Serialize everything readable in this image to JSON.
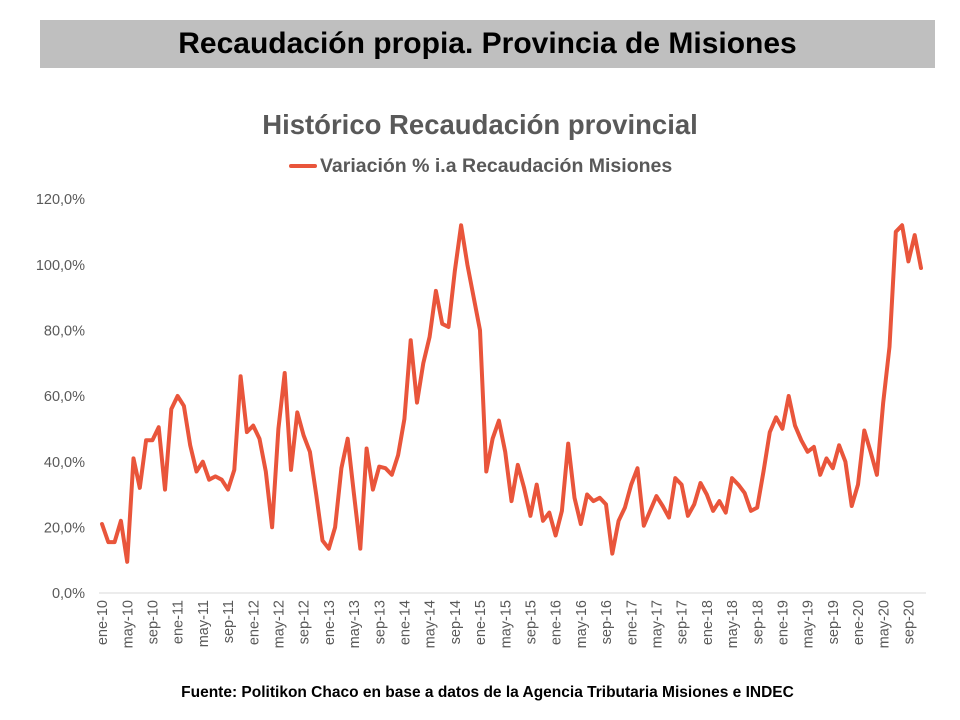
{
  "header": {
    "title": "Recaudación propia. Provincia de Misiones"
  },
  "chart_data": {
    "type": "line",
    "title": "Histórico Recaudación provincial",
    "xlabel": "",
    "ylabel": "",
    "ylim": [
      0,
      120
    ],
    "grid": false,
    "legend": "top",
    "y_ticks": [
      {
        "value": 0,
        "label": "0,0%"
      },
      {
        "value": 20,
        "label": "20,0%"
      },
      {
        "value": 40,
        "label": "40,0%"
      },
      {
        "value": 60,
        "label": "60,0%"
      },
      {
        "value": 80,
        "label": "80,0%"
      },
      {
        "value": 100,
        "label": "100,0%"
      },
      {
        "value": 120,
        "label": "120,0%"
      }
    ],
    "x_tick_labels": [
      "ene-10",
      "may-10",
      "sep-10",
      "ene-11",
      "may-11",
      "sep-11",
      "ene-12",
      "may-12",
      "sep-12",
      "ene-13",
      "may-13",
      "sep-13",
      "ene-14",
      "may-14",
      "sep-14",
      "ene-15",
      "may-15",
      "sep-15",
      "ene-16",
      "may-16",
      "sep-16",
      "ene-17",
      "may-17",
      "sep-17",
      "ene-18",
      "may-18",
      "sep-18",
      "ene-19",
      "may-19",
      "sep-19",
      "ene-20",
      "may-20",
      "sep-20"
    ],
    "series": [
      {
        "name": "Variación % i.a Recaudación Misiones",
        "color": "#e9553b",
        "values": [
          21,
          15.5,
          15.5,
          22,
          9.5,
          41,
          32,
          46.5,
          46.5,
          50.5,
          31.5,
          56,
          60,
          57,
          45,
          37,
          40,
          34.5,
          35.5,
          34.5,
          31.5,
          37.5,
          66,
          49,
          51,
          47,
          37,
          20,
          50,
          67,
          37.5,
          55,
          48,
          43,
          30,
          16,
          13.5,
          20,
          38,
          47,
          30,
          13.5,
          44,
          31.5,
          38.5,
          38,
          36,
          42,
          53,
          77,
          58,
          70,
          78,
          92,
          82,
          81,
          98,
          112,
          100,
          90,
          80,
          37,
          47,
          52.5,
          43,
          28,
          39,
          32,
          23.5,
          33,
          22,
          24.5,
          17.5,
          25,
          45.5,
          29,
          21,
          30,
          28,
          29,
          27,
          12,
          22,
          26,
          33,
          38,
          20.5,
          25,
          29.5,
          26.5,
          23,
          35,
          33,
          23.5,
          27,
          33.5,
          30,
          25,
          28,
          24.5,
          35,
          33,
          30.5,
          25,
          26,
          37,
          49,
          53.5,
          50,
          60,
          51,
          46.5,
          43,
          44.5,
          36,
          41,
          38,
          45,
          40,
          26.5,
          33,
          49.5,
          43,
          36,
          58,
          75,
          110,
          112,
          101,
          109,
          99
        ]
      }
    ]
  },
  "footer": {
    "source": "Fuente: Politikon Chaco en base a datos de la Agencia Tributaria Misiones e INDEC"
  }
}
